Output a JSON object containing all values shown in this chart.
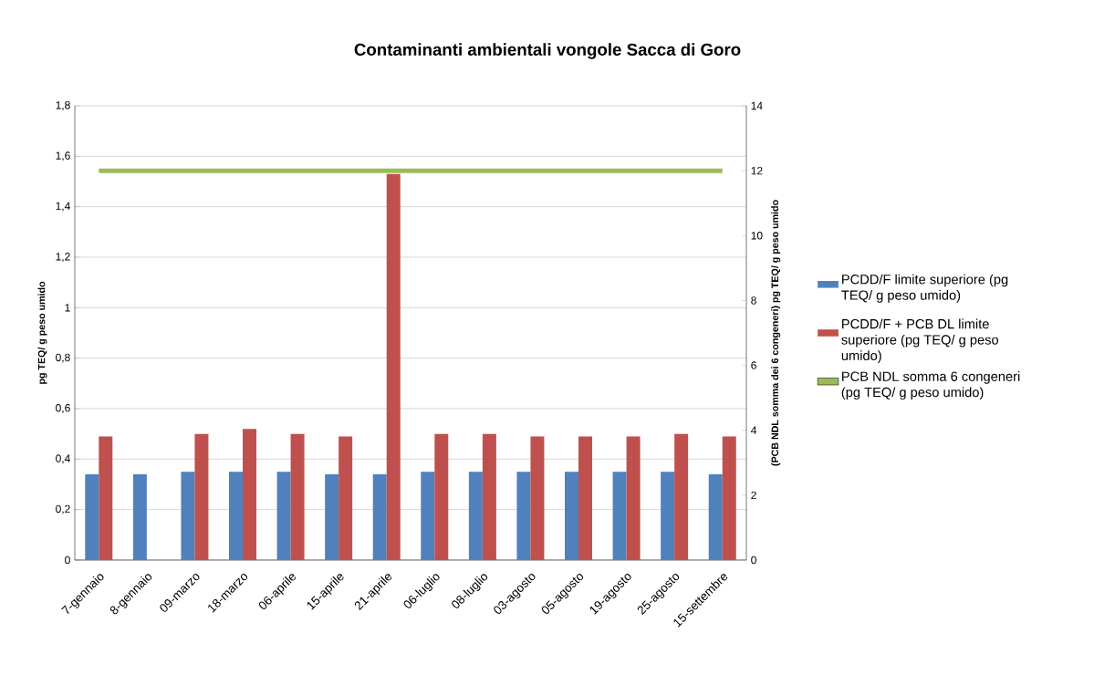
{
  "chart_data": {
    "type": "bar",
    "title": "Contaminanti ambientali vongole Sacca di Goro",
    "categories": [
      "7-gennaio",
      "8-gennaio",
      "09-marzo",
      "18-marzo",
      "06-aprile",
      "15-aprile",
      "21-aprile",
      "06-luglio",
      "08-luglio",
      "03-agosto",
      "05-agosto",
      "19-agosto",
      "25-agosto",
      "15-settembre"
    ],
    "series": [
      {
        "name": "PCDD/F limite superiore  (pg TEQ/ g peso umido)",
        "type": "bar",
        "color": "#4f81bd",
        "values": [
          0.34,
          0.34,
          0.35,
          0.35,
          0.35,
          0.34,
          0.34,
          0.35,
          0.35,
          0.35,
          0.35,
          0.35,
          0.35,
          0.34
        ]
      },
      {
        "name": "PCDD/F + PCB DL limite superiore (pg TEQ/ g peso umido)",
        "type": "bar",
        "color": "#c0504d",
        "values": [
          0.49,
          0,
          0.5,
          0.52,
          0.5,
          0.49,
          1.53,
          0.5,
          0.5,
          0.49,
          0.49,
          0.49,
          0.5,
          0.49
        ]
      },
      {
        "name": "PCB NDL somma 6 congeneri  (pg TEQ/ g peso umido)",
        "type": "line",
        "axis": "y2",
        "color": "#9bbb59",
        "values": [
          12,
          12,
          12,
          12,
          12,
          12,
          12,
          12,
          12,
          12,
          12,
          12,
          12,
          12
        ]
      }
    ],
    "ylabel": "pg TEQ/ g peso umido",
    "y2label": "(PCB NDL somma dei 6 congeneri) pg TEQ/ g peso umido",
    "ylim": [
      0,
      1.8
    ],
    "yticks": [
      0,
      {
        "value": 0.2,
        "label": "0,2"
      },
      {
        "value": 0.4,
        "label": "0,4"
      },
      {
        "value": 0.6,
        "label": "0,6"
      },
      {
        "value": 0.8,
        "label": "0,8"
      },
      1,
      {
        "value": 1.2,
        "label": "1,2"
      },
      {
        "value": 1.4,
        "label": "1,4"
      },
      {
        "value": 1.6,
        "label": "1,6"
      },
      {
        "value": 1.8,
        "label": "1,8"
      }
    ],
    "y2lim": [
      0,
      14
    ],
    "y2ticks": [
      0,
      2,
      4,
      6,
      8,
      10,
      12,
      14
    ],
    "grid": "y",
    "legend": "right",
    "marker": "none"
  }
}
